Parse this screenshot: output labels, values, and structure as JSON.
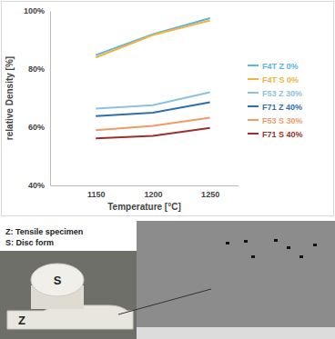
{
  "chart_data": {
    "type": "line",
    "x_label": "Temperature [°C]",
    "y_label": "relative Density [%]",
    "x": [
      1150,
      1200,
      1250
    ],
    "xlim": [
      1110,
      1275
    ],
    "xticks": [
      1150,
      1200,
      1250
    ],
    "ylim": [
      40,
      100
    ],
    "yticks": [
      {
        "value": 40,
        "label": "40%"
      },
      {
        "value": 60,
        "label": "60%"
      },
      {
        "value": 80,
        "label": "80%"
      },
      {
        "value": 100,
        "label": "100%"
      }
    ],
    "grid": false,
    "legend": "right",
    "series": [
      {
        "name": "F4T Z 0%",
        "color": "#5ab4e5",
        "values": [
          84.8,
          92.0,
          97.5
        ]
      },
      {
        "name": "F4T S 0%",
        "color": "#f4b23e",
        "values": [
          84.0,
          91.7,
          96.7
        ]
      },
      {
        "name": "F53 Z 30%",
        "color": "#8cc2e0",
        "values": [
          66.4,
          67.6,
          72.0
        ]
      },
      {
        "name": "F71 Z 40%",
        "color": "#2e6fae",
        "values": [
          63.8,
          65.0,
          68.6
        ]
      },
      {
        "name": "F53 S 30%",
        "color": "#f09a6a",
        "values": [
          59.0,
          60.5,
          63.3
        ]
      },
      {
        "name": "F71 S 40%",
        "color": "#9e2f28",
        "values": [
          56.2,
          57.0,
          59.8
        ]
      }
    ],
    "annotations": [
      "Z: Tensile specimen",
      "S: Disc form",
      "S",
      "Z"
    ]
  }
}
